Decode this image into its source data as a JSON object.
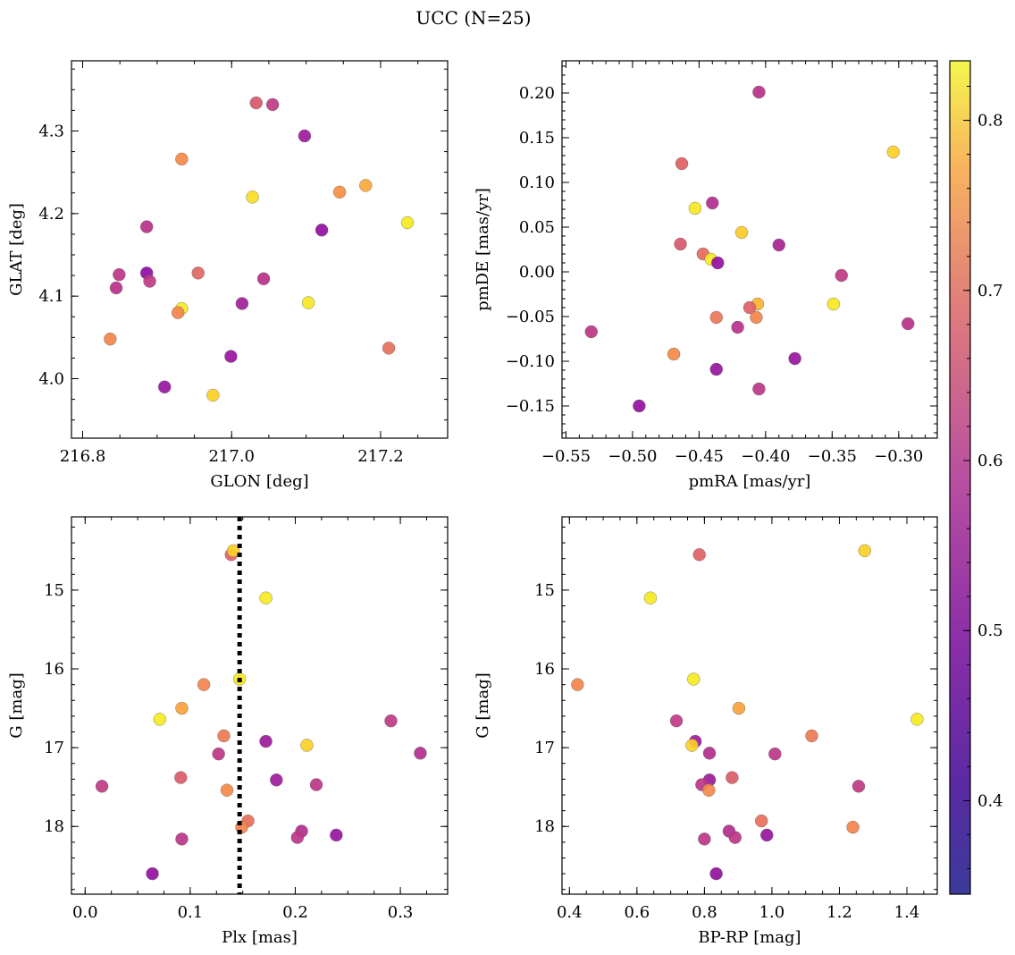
{
  "title": "UCC (N=25)",
  "colorbar": {
    "cmap": "plasma",
    "range": [
      0.345,
      0.835
    ],
    "ticks": [
      0.4,
      0.5,
      0.6,
      0.7,
      0.8
    ],
    "tick_labels": [
      "0.4",
      "0.5",
      "0.6",
      "0.7",
      "0.8"
    ]
  },
  "chart_data": [
    {
      "type": "scatter",
      "xlabel": "GLON [deg]",
      "ylabel": "GLAT [deg]",
      "xlim": [
        216.785,
        217.29
      ],
      "ylim": [
        3.928,
        4.385
      ],
      "xticks": [
        216.8,
        217.0,
        217.2
      ],
      "xtick_labels": [
        "216.8",
        "217.0",
        "217.2"
      ],
      "yticks": [
        4.0,
        4.1,
        4.2,
        4.3
      ],
      "ytick_labels": [
        "4.0",
        "4.1",
        "4.2",
        "4.3"
      ],
      "x_minor": 0.05,
      "y_minor": 0.025,
      "points": [
        {
          "x": 217.033,
          "y": 4.334,
          "c": 0.53
        },
        {
          "x": 217.055,
          "y": 4.332,
          "c": 0.47
        },
        {
          "x": 217.098,
          "y": 4.294,
          "c": 0.4
        },
        {
          "x": 216.933,
          "y": 4.266,
          "c": 0.63
        },
        {
          "x": 217.028,
          "y": 4.22,
          "c": 0.79
        },
        {
          "x": 217.145,
          "y": 4.226,
          "c": 0.64
        },
        {
          "x": 217.18,
          "y": 4.234,
          "c": 0.68
        },
        {
          "x": 217.236,
          "y": 4.189,
          "c": 0.83
        },
        {
          "x": 216.886,
          "y": 4.184,
          "c": 0.45
        },
        {
          "x": 217.121,
          "y": 4.18,
          "c": 0.38
        },
        {
          "x": 216.849,
          "y": 4.126,
          "c": 0.46
        },
        {
          "x": 216.886,
          "y": 4.128,
          "c": 0.37
        },
        {
          "x": 216.955,
          "y": 4.128,
          "c": 0.56
        },
        {
          "x": 216.89,
          "y": 4.118,
          "c": 0.47
        },
        {
          "x": 217.043,
          "y": 4.121,
          "c": 0.45
        },
        {
          "x": 216.845,
          "y": 4.11,
          "c": 0.45
        },
        {
          "x": 217.103,
          "y": 4.092,
          "c": 0.82
        },
        {
          "x": 217.014,
          "y": 4.091,
          "c": 0.41
        },
        {
          "x": 216.933,
          "y": 4.085,
          "c": 0.83
        },
        {
          "x": 216.928,
          "y": 4.08,
          "c": 0.62
        },
        {
          "x": 216.837,
          "y": 4.048,
          "c": 0.62
        },
        {
          "x": 217.211,
          "y": 4.037,
          "c": 0.58
        },
        {
          "x": 216.999,
          "y": 4.027,
          "c": 0.39
        },
        {
          "x": 216.91,
          "y": 3.99,
          "c": 0.39
        },
        {
          "x": 216.975,
          "y": 3.98,
          "c": 0.76
        }
      ]
    },
    {
      "type": "scatter",
      "xlabel": "pmRA [mas/yr]",
      "ylabel": "pmDE [mas/yr]",
      "xlim": [
        -0.553,
        -0.271
      ],
      "ylim": [
        -0.186,
        0.236
      ],
      "xticks": [
        -0.55,
        -0.5,
        -0.45,
        -0.4,
        -0.35,
        -0.3
      ],
      "xtick_labels": [
        "−0.55",
        "−0.50",
        "−0.45",
        "−0.40",
        "−0.35",
        "−0.30"
      ],
      "yticks": [
        -0.15,
        -0.1,
        -0.05,
        0.0,
        0.05,
        0.1,
        0.15,
        0.2
      ],
      "ytick_labels": [
        "−0.15",
        "−0.10",
        "−0.05",
        "0.00",
        "0.05",
        "0.10",
        "0.15",
        "0.20"
      ],
      "x_minor": 0.01,
      "y_minor": 0.01,
      "points": [
        {
          "x": -0.405,
          "y": 0.201,
          "c": 0.45
        },
        {
          "x": -0.304,
          "y": 0.134,
          "c": 0.76
        },
        {
          "x": -0.463,
          "y": 0.121,
          "c": 0.55
        },
        {
          "x": -0.44,
          "y": 0.077,
          "c": 0.44
        },
        {
          "x": -0.453,
          "y": 0.071,
          "c": 0.82
        },
        {
          "x": -0.418,
          "y": 0.044,
          "c": 0.75
        },
        {
          "x": -0.464,
          "y": 0.031,
          "c": 0.53
        },
        {
          "x": -0.39,
          "y": 0.03,
          "c": 0.42
        },
        {
          "x": -0.447,
          "y": 0.02,
          "c": 0.57
        },
        {
          "x": -0.441,
          "y": 0.014,
          "c": 0.83
        },
        {
          "x": -0.436,
          "y": 0.01,
          "c": 0.38
        },
        {
          "x": -0.343,
          "y": -0.004,
          "c": 0.47
        },
        {
          "x": -0.406,
          "y": -0.036,
          "c": 0.7
        },
        {
          "x": -0.349,
          "y": -0.036,
          "c": 0.82
        },
        {
          "x": -0.412,
          "y": -0.04,
          "c": 0.55
        },
        {
          "x": -0.437,
          "y": -0.051,
          "c": 0.59
        },
        {
          "x": -0.407,
          "y": -0.051,
          "c": 0.62
        },
        {
          "x": -0.293,
          "y": -0.058,
          "c": 0.45
        },
        {
          "x": -0.421,
          "y": -0.062,
          "c": 0.45
        },
        {
          "x": -0.531,
          "y": -0.067,
          "c": 0.46
        },
        {
          "x": -0.469,
          "y": -0.092,
          "c": 0.63
        },
        {
          "x": -0.378,
          "y": -0.097,
          "c": 0.39
        },
        {
          "x": -0.437,
          "y": -0.109,
          "c": 0.39
        },
        {
          "x": -0.405,
          "y": -0.131,
          "c": 0.46
        },
        {
          "x": -0.495,
          "y": -0.15,
          "c": 0.38
        }
      ]
    },
    {
      "type": "scatter",
      "xlabel": "Plx [mas]",
      "ylabel": "G [mag]",
      "xlim": [
        -0.013,
        0.345
      ],
      "ylim": [
        18.86,
        14.07
      ],
      "y_inverted": true,
      "xticks": [
        0.0,
        0.1,
        0.2,
        0.3
      ],
      "xtick_labels": [
        "0.0",
        "0.1",
        "0.2",
        "0.3"
      ],
      "yticks": [
        15,
        16,
        17,
        18
      ],
      "ytick_labels": [
        "15",
        "16",
        "17",
        "18"
      ],
      "x_minor": 0.025,
      "y_minor": 0.2,
      "vline": {
        "x": 0.147,
        "style": "dotted",
        "color": "#000000"
      },
      "points": [
        {
          "x": 0.139,
          "y": 14.55,
          "c": 0.55
        },
        {
          "x": 0.141,
          "y": 14.5,
          "c": 0.76
        },
        {
          "x": 0.172,
          "y": 15.1,
          "c": 0.83
        },
        {
          "x": 0.147,
          "y": 16.13,
          "c": 0.83
        },
        {
          "x": 0.113,
          "y": 16.2,
          "c": 0.62
        },
        {
          "x": 0.092,
          "y": 16.5,
          "c": 0.67
        },
        {
          "x": 0.071,
          "y": 16.64,
          "c": 0.83
        },
        {
          "x": 0.291,
          "y": 16.66,
          "c": 0.47
        },
        {
          "x": 0.132,
          "y": 16.85,
          "c": 0.6
        },
        {
          "x": 0.172,
          "y": 16.92,
          "c": 0.4
        },
        {
          "x": 0.211,
          "y": 16.97,
          "c": 0.76
        },
        {
          "x": 0.127,
          "y": 17.08,
          "c": 0.46
        },
        {
          "x": 0.319,
          "y": 17.07,
          "c": 0.44
        },
        {
          "x": 0.091,
          "y": 17.38,
          "c": 0.54
        },
        {
          "x": 0.182,
          "y": 17.41,
          "c": 0.4
        },
        {
          "x": 0.22,
          "y": 17.47,
          "c": 0.46
        },
        {
          "x": 0.016,
          "y": 17.49,
          "c": 0.47
        },
        {
          "x": 0.135,
          "y": 17.54,
          "c": 0.63
        },
        {
          "x": 0.155,
          "y": 17.93,
          "c": 0.58
        },
        {
          "x": 0.149,
          "y": 18.01,
          "c": 0.62
        },
        {
          "x": 0.206,
          "y": 18.06,
          "c": 0.44
        },
        {
          "x": 0.239,
          "y": 18.11,
          "c": 0.39
        },
        {
          "x": 0.202,
          "y": 18.14,
          "c": 0.46
        },
        {
          "x": 0.092,
          "y": 18.16,
          "c": 0.46
        },
        {
          "x": 0.064,
          "y": 18.6,
          "c": 0.38
        }
      ]
    },
    {
      "type": "scatter",
      "xlabel": "BP-RP [mag]",
      "ylabel": "G [mag]",
      "xlim": [
        0.378,
        1.49
      ],
      "ylim": [
        18.86,
        14.07
      ],
      "y_inverted": true,
      "xticks": [
        0.4,
        0.6,
        0.8,
        1.0,
        1.2,
        1.4
      ],
      "xtick_labels": [
        "0.4",
        "0.6",
        "0.8",
        "1.0",
        "1.2",
        "1.4"
      ],
      "yticks": [
        15,
        16,
        17,
        18
      ],
      "ytick_labels": [
        "15",
        "16",
        "17",
        "18"
      ],
      "x_minor": 0.05,
      "y_minor": 0.2,
      "points": [
        {
          "x": 0.785,
          "y": 14.55,
          "c": 0.55
        },
        {
          "x": 1.275,
          "y": 14.5,
          "c": 0.76
        },
        {
          "x": 0.64,
          "y": 15.1,
          "c": 0.83
        },
        {
          "x": 0.768,
          "y": 16.13,
          "c": 0.83
        },
        {
          "x": 0.424,
          "y": 16.2,
          "c": 0.62
        },
        {
          "x": 0.902,
          "y": 16.5,
          "c": 0.67
        },
        {
          "x": 1.43,
          "y": 16.64,
          "c": 0.83
        },
        {
          "x": 0.717,
          "y": 16.66,
          "c": 0.47
        },
        {
          "x": 1.118,
          "y": 16.85,
          "c": 0.6
        },
        {
          "x": 0.773,
          "y": 16.92,
          "c": 0.4
        },
        {
          "x": 0.763,
          "y": 16.97,
          "c": 0.76
        },
        {
          "x": 1.009,
          "y": 17.08,
          "c": 0.46
        },
        {
          "x": 0.815,
          "y": 17.07,
          "c": 0.44
        },
        {
          "x": 0.882,
          "y": 17.38,
          "c": 0.54
        },
        {
          "x": 0.815,
          "y": 17.41,
          "c": 0.4
        },
        {
          "x": 0.792,
          "y": 17.47,
          "c": 0.46
        },
        {
          "x": 1.257,
          "y": 17.49,
          "c": 0.47
        },
        {
          "x": 0.813,
          "y": 17.54,
          "c": 0.63
        },
        {
          "x": 0.969,
          "y": 17.93,
          "c": 0.58
        },
        {
          "x": 1.24,
          "y": 18.01,
          "c": 0.62
        },
        {
          "x": 0.873,
          "y": 18.06,
          "c": 0.44
        },
        {
          "x": 0.985,
          "y": 18.11,
          "c": 0.39
        },
        {
          "x": 0.891,
          "y": 18.14,
          "c": 0.46
        },
        {
          "x": 0.8,
          "y": 18.16,
          "c": 0.46
        },
        {
          "x": 0.835,
          "y": 18.6,
          "c": 0.38
        }
      ]
    }
  ]
}
